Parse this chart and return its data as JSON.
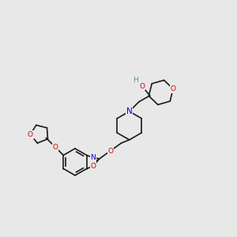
{
  "bg_color": "#e8e8e8",
  "atom_colors": {
    "O": "#cc0000",
    "N": "#0000cc",
    "H": "#4a9a9a",
    "C": "#1a1a1a"
  },
  "lw": 1.2,
  "fontsize": 6.5
}
